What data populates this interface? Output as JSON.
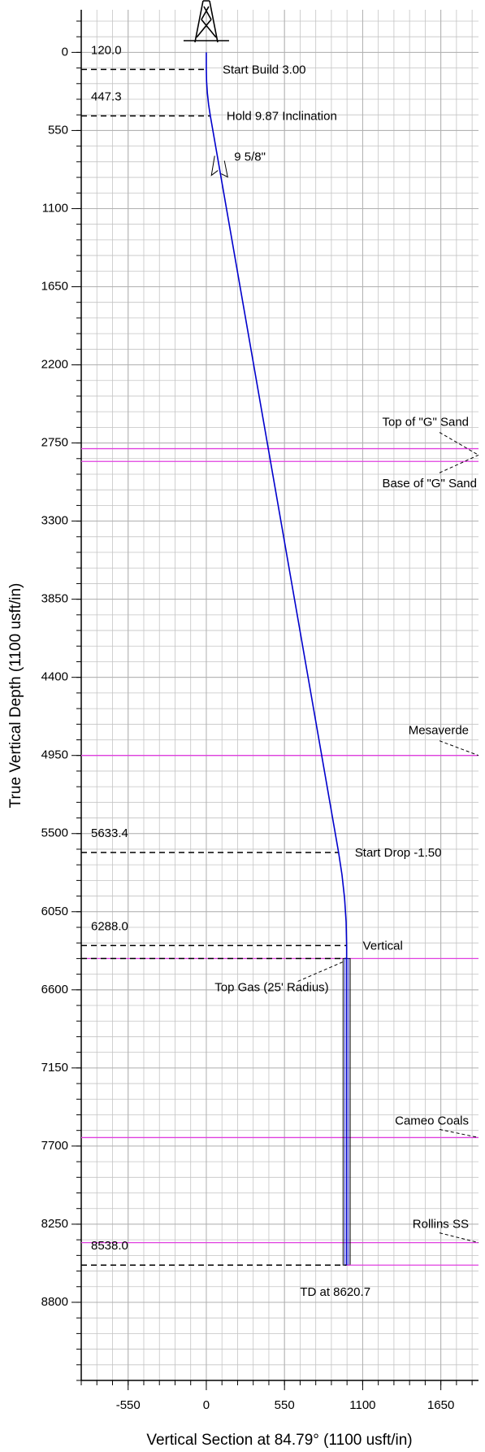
{
  "chart_data": {
    "type": "line",
    "xlabel": "Vertical Section at 84.79° (1100 usft/in)",
    "ylabel": "True Vertical Depth (1100 usft/in)",
    "xlim": [
      -880,
      1915
    ],
    "ylim": [
      -300,
      9350
    ],
    "y_inverted": true,
    "xticks": [
      -550,
      0,
      550,
      1100,
      1650
    ],
    "yticks": [
      0,
      550,
      1100,
      1650,
      2200,
      2750,
      3300,
      3850,
      4400,
      4950,
      5500,
      6050,
      6600,
      7150,
      7700,
      8250,
      8800
    ],
    "grid": true,
    "well_path": {
      "color": "#0000cc",
      "vs": [
        0,
        0,
        1.8,
        7.3,
        16.3,
        28.3,
        930.7,
        954.5,
        972.7,
        983.6,
        987.2,
        987.2
      ],
      "tvd": [
        0,
        120,
        203.3,
        286.5,
        369.3,
        447.3,
        5633.4,
        5789.6,
        5955.3,
        6121.6,
        6288,
        8538
      ]
    },
    "markers": [
      {
        "tvd": 120,
        "tvd_label": "120.0",
        "vs": 0,
        "label": "Start Build 3.00"
      },
      {
        "tvd": 447.3,
        "vs": 28.3,
        "label": "Hold 9.87 Inclination"
      },
      {
        "tvd": 5633.4,
        "vs": 930.7,
        "label": "Start Drop -1.50"
      },
      {
        "tvd": 6288,
        "tvd_label": "6288.0",
        "vs": 987.2,
        "label": "Vertical"
      }
    ],
    "td": {
      "tvd": 8538,
      "tvd_label": "8538.0",
      "vs": 987.2,
      "label": "TD at 8620.7"
    },
    "formations": [
      {
        "name": "Top of \"G\" Sand",
        "tvd": 2790
      },
      {
        "name": "Base of \"G\" Sand",
        "tvd": 2880
      },
      {
        "name": "Mesaverde",
        "tvd": 4950
      },
      {
        "name": "Cameo Coals",
        "tvd": 7640
      },
      {
        "name": "Rollins SS",
        "tvd": 8380
      }
    ],
    "formation_color": "#e040e0",
    "target": {
      "name": "Top Gas (25' Radius)",
      "tvd": 6380,
      "base_tvd": 8538,
      "vs": 987.2,
      "radius": 25
    },
    "casing": {
      "name": "9 5/8\"",
      "tvd": 820,
      "vs": 93
    }
  }
}
